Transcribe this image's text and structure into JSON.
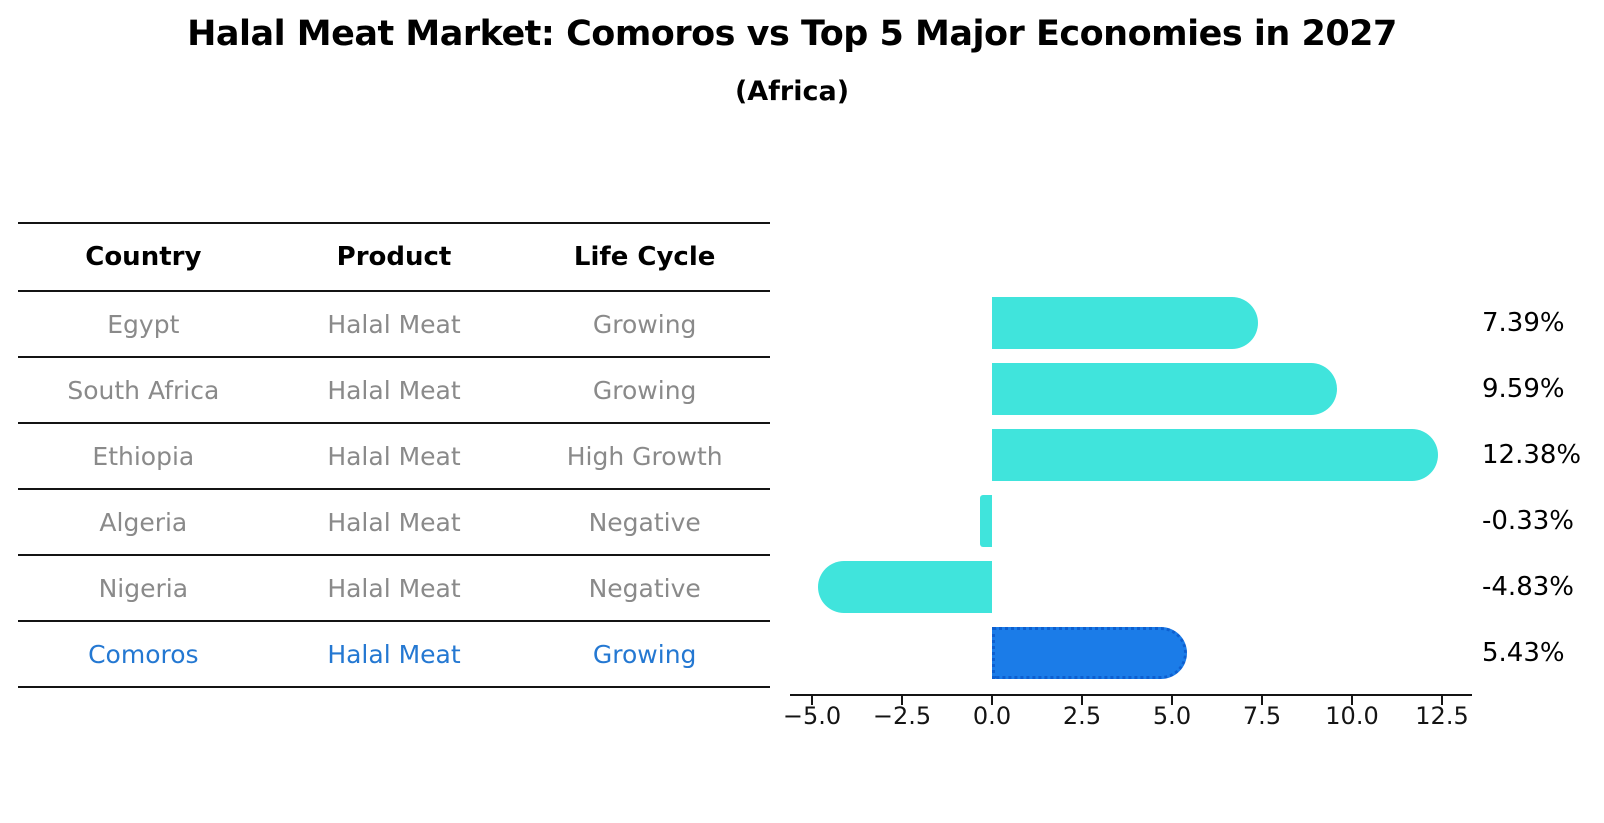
{
  "title": "Halal Meat Market: Comoros vs Top 5 Major Economies in 2027",
  "subtitle": "(Africa)",
  "table": {
    "headers": [
      "Country",
      "Product",
      "Life Cycle"
    ],
    "rows": [
      {
        "country": "Egypt",
        "product": "Halal Meat",
        "life_cycle": "Growing",
        "highlight": false
      },
      {
        "country": "South Africa",
        "product": "Halal Meat",
        "life_cycle": "Growing",
        "highlight": false
      },
      {
        "country": "Ethiopia",
        "product": "Halal Meat",
        "life_cycle": "High Growth",
        "highlight": false
      },
      {
        "country": "Algeria",
        "product": "Halal Meat",
        "life_cycle": "Negative",
        "highlight": false
      },
      {
        "country": "Nigeria",
        "product": "Halal Meat",
        "life_cycle": "Negative",
        "highlight": false
      },
      {
        "country": "Comoros",
        "product": "Halal Meat",
        "life_cycle": "Growing",
        "highlight": true
      }
    ]
  },
  "chart_data": {
    "type": "bar",
    "orientation": "horizontal",
    "title": "Halal Meat Market: Comoros vs Top 5 Major Economies in 2027 (Africa)",
    "categories": [
      "Egypt",
      "South Africa",
      "Ethiopia",
      "Algeria",
      "Nigeria",
      "Comoros"
    ],
    "values": [
      7.39,
      9.59,
      12.38,
      -0.33,
      -4.83,
      5.43
    ],
    "value_labels": [
      "7.39%",
      "9.59%",
      "12.38%",
      "-0.33%",
      "-4.83%",
      "5.43%"
    ],
    "highlight_index": 5,
    "x_tick_labels": [
      "−5.0",
      "−2.5",
      "0.0",
      "2.5",
      "5.0",
      "7.5",
      "10.0",
      "12.5"
    ],
    "x_tick_values": [
      -5.0,
      -2.5,
      0.0,
      2.5,
      5.0,
      7.5,
      10.0,
      12.5
    ],
    "xlim": [
      -5.6,
      13.3
    ],
    "grid": false,
    "legend": false,
    "unit_suffix": "%"
  },
  "colors": {
    "bar": "#40E4DC",
    "highlight_bar": "#1B7CE8",
    "highlight_bar_edge": "#0d5fd0",
    "highlight_text": "#2478d2",
    "row_text": "#8a8a8a",
    "axis": "#141414"
  }
}
